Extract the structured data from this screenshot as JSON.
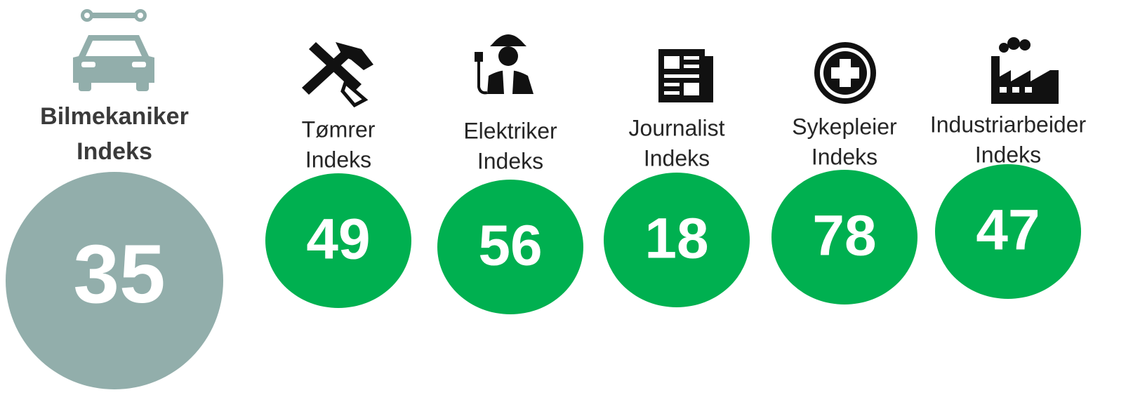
{
  "featured": {
    "label": [
      "Bilmekaniker",
      "Indeks"
    ],
    "value": 35
  },
  "items": [
    {
      "label": [
        "Tømrer",
        "Indeks"
      ],
      "value": 49
    },
    {
      "label": [
        "Elektriker",
        "Indeks"
      ],
      "value": 56
    },
    {
      "label": [
        "Journalist",
        "Indeks"
      ],
      "value": 18
    },
    {
      "label": [
        "Sykepleier",
        "Indeks"
      ],
      "value": 78
    },
    {
      "label": [
        "Industriarbeider",
        "Indeks"
      ],
      "value": 47
    }
  ]
}
